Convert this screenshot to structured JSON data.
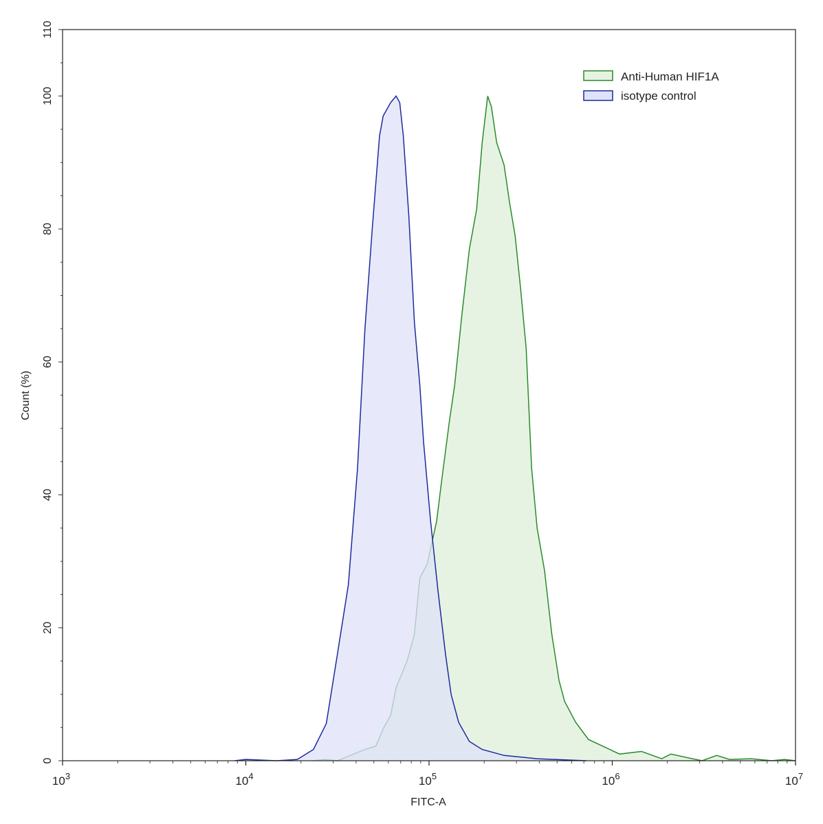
{
  "chart_data": {
    "type": "area",
    "title": "",
    "xlabel": "FITC-A",
    "ylabel": "Count (%)",
    "xscale": "log",
    "xlim": [
      1000,
      10000000
    ],
    "ylim": [
      0,
      110
    ],
    "x_ticks": [
      {
        "base": "10",
        "exp": "3",
        "value": 1000
      },
      {
        "base": "10",
        "exp": "4",
        "value": 10000
      },
      {
        "base": "10",
        "exp": "5",
        "value": 100000
      },
      {
        "base": "10",
        "exp": "6",
        "value": 1000000
      },
      {
        "base": "10",
        "exp": "7",
        "value": 10000000
      }
    ],
    "y_ticks": [
      "0",
      "20",
      "40",
      "60",
      "80",
      "100",
      "110"
    ],
    "grid": false,
    "legend_position": "top-right",
    "series": [
      {
        "name": "Anti-Human HIF1A",
        "stroke": "#2a8a2a",
        "fill": "#e6f3e3",
        "x": [
          23400,
          26900,
          31600,
          38000,
          44700,
          51300,
          56200,
          61700,
          66100,
          75900,
          83200,
          89100,
          97700,
          110000,
          117000,
          129000,
          138000,
          151000,
          166000,
          182000,
          195000,
          209000,
          219000,
          234000,
          257000,
          275000,
          295000,
          316000,
          339000,
          363000,
          389000,
          427000,
          468000,
          513000,
          550000,
          631000,
          741000,
          933000,
          1096000,
          1445000,
          1862000,
          2089000,
          2630000,
          3090000,
          3715000,
          4365000,
          5754000,
          7413000,
          8710000,
          10000000
        ],
        "y": [
          0,
          0.2,
          0,
          0.9,
          1.7,
          2.2,
          4.8,
          6.8,
          11,
          15,
          19,
          27.5,
          29.6,
          36,
          42,
          51,
          56.5,
          67,
          77,
          83,
          93,
          100,
          98.4,
          93,
          89.6,
          84,
          79,
          71,
          62,
          44,
          35,
          28.6,
          19,
          12,
          8.9,
          5.8,
          3.2,
          1.9,
          1.0,
          1.4,
          0.3,
          1.0,
          0.4,
          0,
          0.8,
          0.2,
          0.3,
          0,
          0.2,
          0
        ]
      },
      {
        "name": "isotype control",
        "stroke": "#1c2a9c",
        "fill": "#dfe2f8",
        "x": [
          8710,
          10000,
          14800,
          19100,
          23400,
          27500,
          31600,
          36300,
          40700,
          44700,
          49000,
          53700,
          56200,
          61700,
          66100,
          69200,
          72400,
          77600,
          83200,
          89100,
          93300,
          102000,
          112000,
          123000,
          132000,
          145000,
          166000,
          195000,
          257000,
          389000,
          724000
        ],
        "y": [
          0,
          0.2,
          0,
          0.2,
          1.7,
          5.6,
          16,
          26.5,
          44,
          65,
          80,
          94,
          97,
          99,
          100,
          99,
          94,
          82,
          66,
          56.5,
          48,
          36,
          25.5,
          16,
          10,
          5.8,
          2.9,
          1.7,
          0.8,
          0.3,
          0
        ]
      }
    ]
  }
}
